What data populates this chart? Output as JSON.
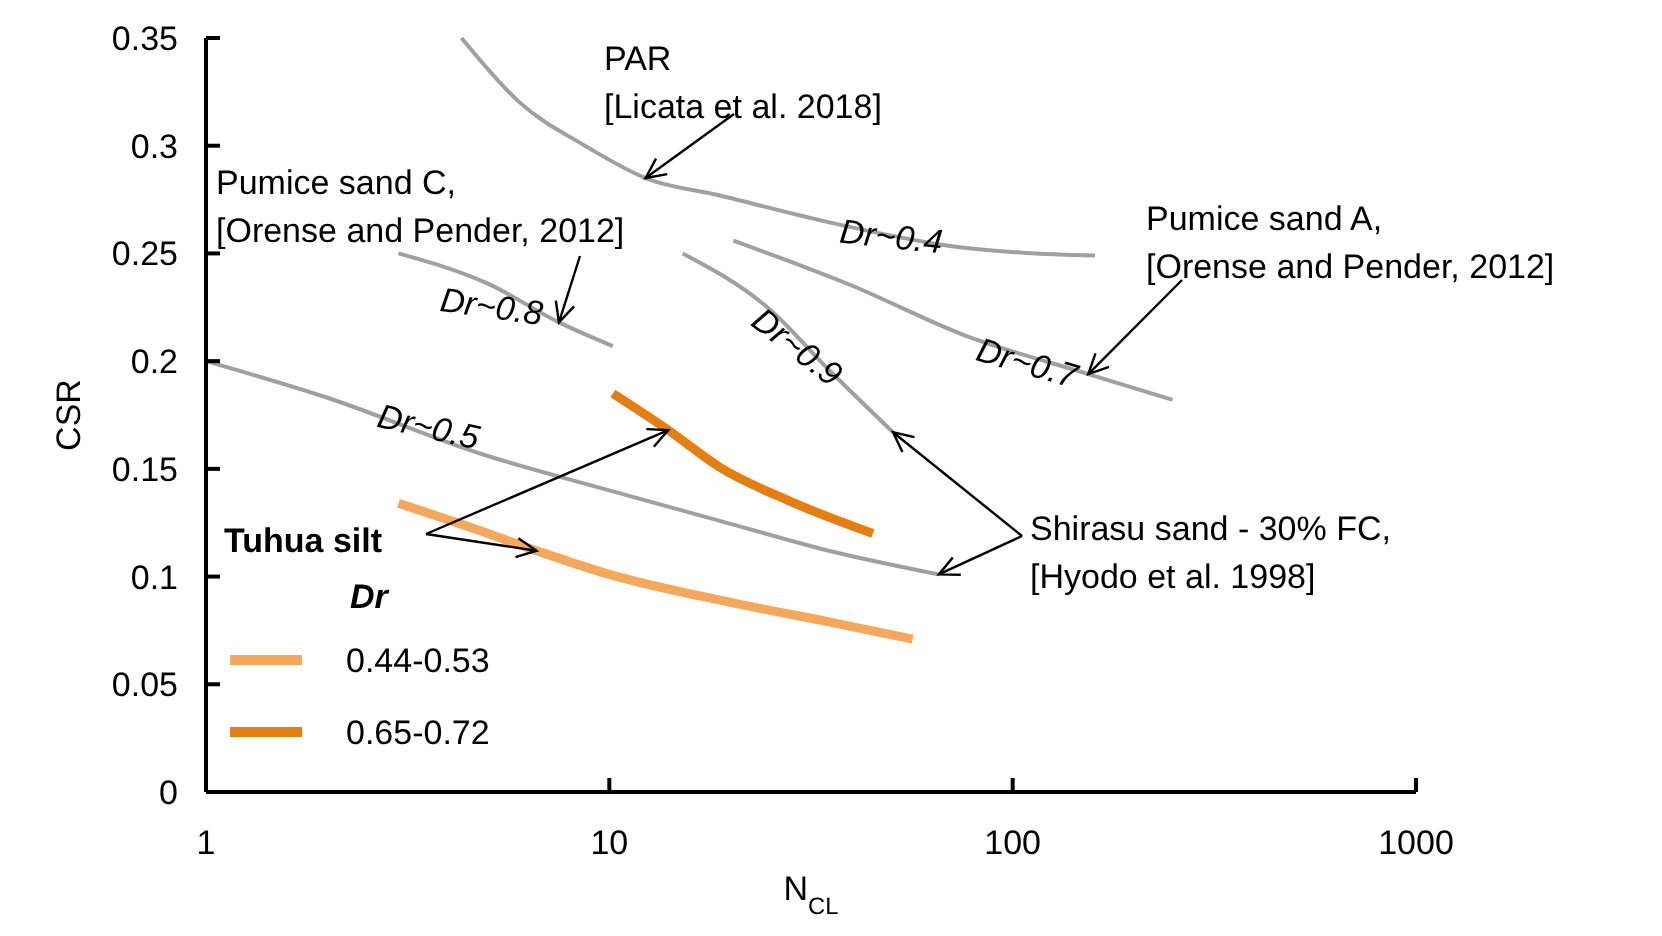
{
  "chart_data": {
    "type": "line",
    "xlabel": "N$_{CL}$",
    "ylabel": "CSR",
    "log": "x",
    "xlim": [
      1,
      1000
    ],
    "xticks": [
      1,
      10,
      100,
      1000
    ],
    "ylim": [
      0,
      0.35
    ],
    "yticks": [
      0,
      0.05,
      0.1,
      0.15,
      0.2,
      0.25,
      0.3,
      0.35
    ],
    "grid": false,
    "legend": "bottom left",
    "legend_title": "Dr",
    "marker": "none",
    "line_style": "solid",
    "series": [
      {
        "color": "#a0a0a0",
        "x": [
          4.3,
          6,
          8.7,
          12.3,
          18.7,
          34,
          73,
          160
        ],
        "values": [
          0.35,
          0.32,
          0.3,
          0.285,
          0.277,
          0.265,
          0.253,
          0.249
        ]
      },
      {
        "color": "#a0a0a0",
        "x": [
          3,
          5,
          7.5,
          10.2
        ],
        "values": [
          0.25,
          0.236,
          0.218,
          0.207
        ]
      },
      {
        "color": "#a0a0a0",
        "x": [
          20.3,
          40,
          76,
          154,
          249
        ],
        "values": [
          0.256,
          0.235,
          0.212,
          0.194,
          0.182
        ]
      },
      {
        "color": "#a0a0a0",
        "x": [
          15.2,
          25,
          35,
          50.5
        ],
        "values": [
          0.25,
          0.224,
          0.196,
          0.167
        ]
      },
      {
        "color": "#a0a0a0",
        "x": [
          1,
          2,
          4.8,
          10,
          18.7,
          35,
          65.6
        ],
        "values": [
          0.2,
          0.183,
          0.157,
          0.14,
          0.126,
          0.112,
          0.101
        ]
      },
      {
        "name": "0.44-0.53",
        "color": "#f6a85a",
        "x": [
          3,
          4.5,
          6.6,
          10,
          20,
          35,
          56.5
        ],
        "values": [
          0.134,
          0.123,
          0.112,
          0.101,
          0.088,
          0.079,
          0.071
        ]
      },
      {
        "name": "0.65-0.72",
        "color": "#e57e0f",
        "x": [
          10.2,
          14,
          18.7,
          28,
          45
        ],
        "values": [
          0.185,
          0.168,
          0.151,
          0.135,
          0.12
        ]
      }
    ],
    "annotations": [
      {
        "text": "PAR\n[Licata et al. 2018]",
        "x": 12.3,
        "y": 0.285
      },
      {
        "text": "Pumice sand C,\n[Orense and Pender, 2012]",
        "x": 7.5,
        "y": 0.218
      },
      {
        "text": "Pumice sand A,\n[Orense and Pender, 2012]",
        "x": 154,
        "y": 0.194
      },
      {
        "text": "Shirasu sand - 30% FC,\n[Hyodo et al. 1998]",
        "x": 50.5,
        "y": 0.167
      },
      {
        "text": "Tuhua silt",
        "x": 14,
        "y": 0.168
      },
      "Dr~0.4",
      "Dr~0.8",
      "Dr~0.9",
      "Dr~0.7",
      "Dr~0.5"
    ]
  }
}
